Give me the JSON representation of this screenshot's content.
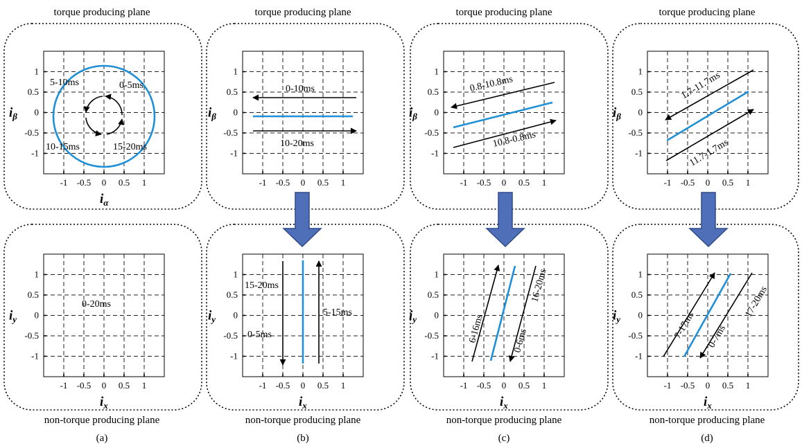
{
  "figure": {
    "top_plane_label": "torque producing plane",
    "bottom_plane_label": "non-torque producing plane",
    "top_axes": {
      "x_label": "i",
      "x_sub": "α",
      "y_label": "i",
      "y_sub": "β"
    },
    "bottom_axes": {
      "x_label": "i",
      "x_sub": "x",
      "y_label": "i",
      "y_sub": "y"
    },
    "ticks": [
      "-1",
      "-0.5",
      "0",
      "0.5",
      "1"
    ],
    "colors": {
      "trajectory": "#1f8fd6",
      "arrow": "#4f6fb8",
      "arrow_edge": "#2d4a8a"
    }
  },
  "panels": [
    {
      "caption": "(a)",
      "top_annotations": [
        "5-10ms",
        "0-5ms",
        "10-15ms",
        "15-20ms"
      ],
      "bottom_annotations": [
        "0-20ms"
      ]
    },
    {
      "caption": "(b)",
      "top_annotations": [
        "0-10ms",
        "10-20ms"
      ],
      "bottom_annotations": [
        "15-20ms",
        "5-15ms",
        "0-5ms"
      ]
    },
    {
      "caption": "(c)",
      "top_annotations": [
        "0.8-10.8ms",
        "10.8-0.8ms"
      ],
      "bottom_annotations": [
        "6-16ms",
        "16-20ms",
        "0-6ms"
      ]
    },
    {
      "caption": "(d)",
      "top_annotations": [
        "1.7-11.7ms",
        "11.7-1.7ms"
      ],
      "bottom_annotations": [
        "7-17ms",
        "17-20ms",
        "0-7ms"
      ]
    }
  ]
}
